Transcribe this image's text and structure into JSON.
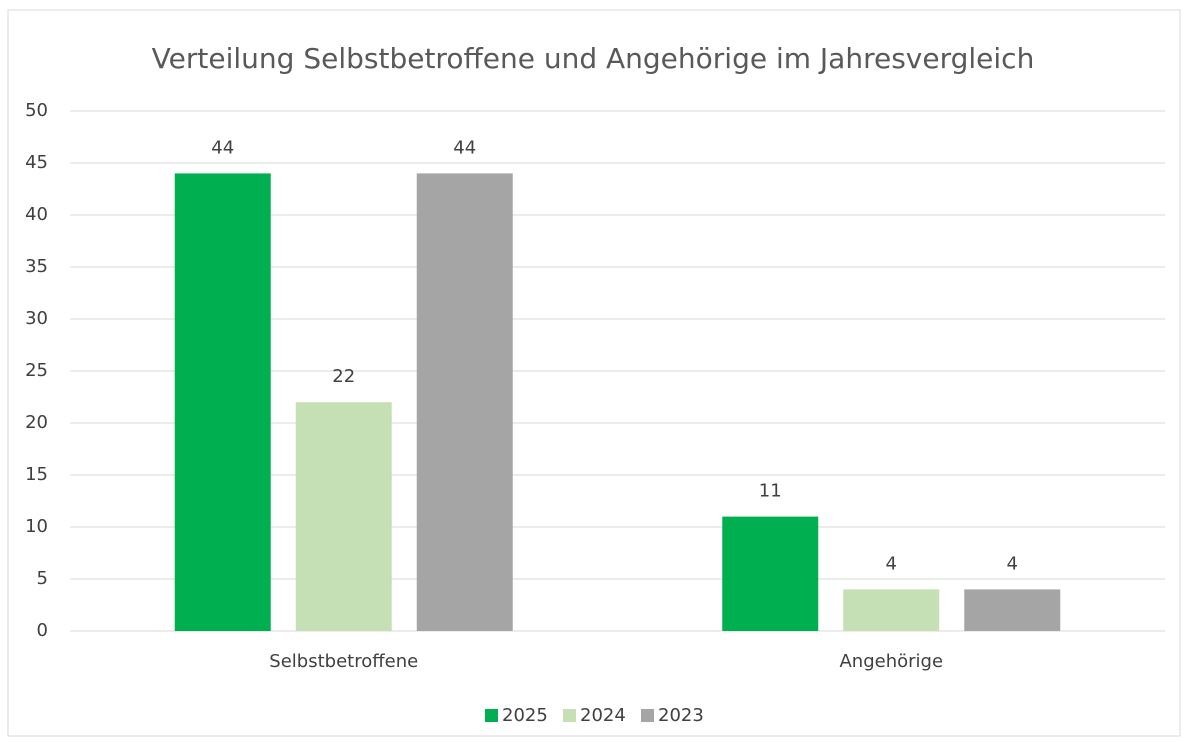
{
  "chart_data": {
    "type": "bar",
    "title": "Verteilung Selbstbetroffene und Angehörige im Jahresvergleich",
    "categories": [
      "Selbstbetroffene",
      "Angehörige"
    ],
    "series": [
      {
        "name": "2025",
        "color": "#00b050",
        "values": [
          44,
          11
        ]
      },
      {
        "name": "2024",
        "color": "#c5e0b4",
        "values": [
          22,
          4
        ]
      },
      {
        "name": "2023",
        "color": "#a5a5a5",
        "values": [
          44,
          4
        ]
      }
    ],
    "ylim": [
      0,
      50
    ],
    "yticks": [
      0,
      5,
      10,
      15,
      20,
      25,
      30,
      35,
      40,
      45,
      50
    ],
    "grid": true,
    "legend": "bottom"
  }
}
